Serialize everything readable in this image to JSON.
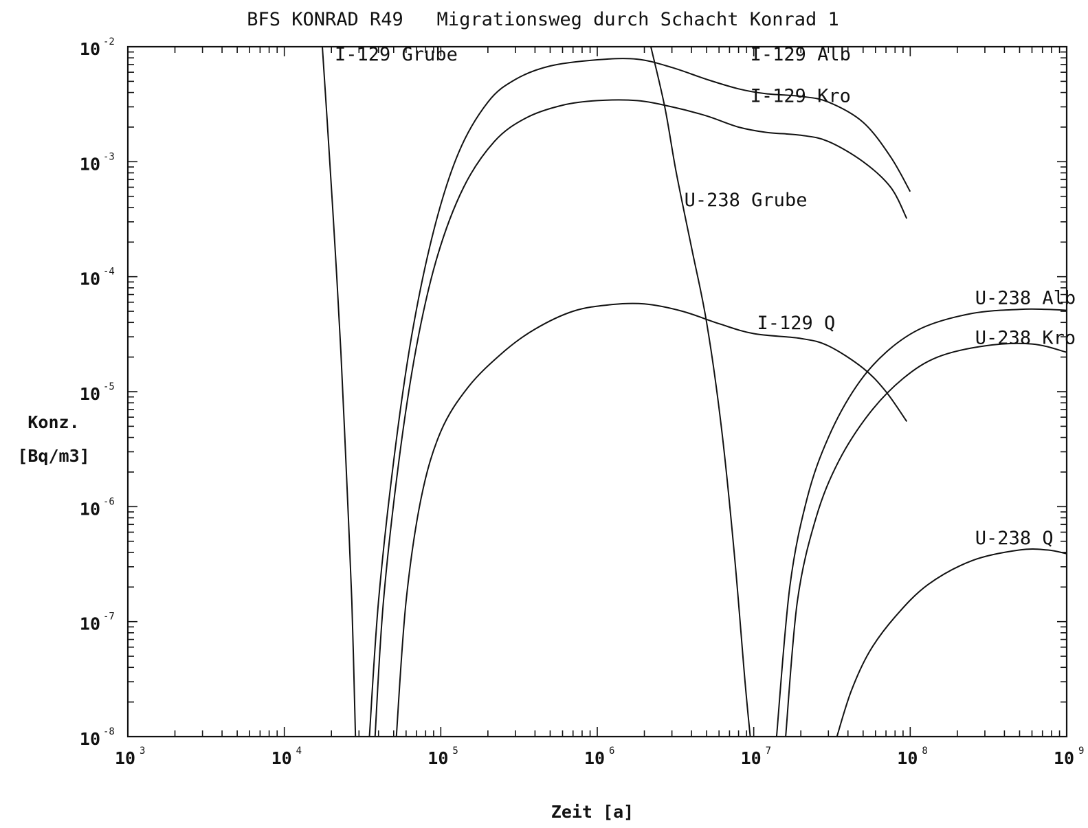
{
  "chart_data": {
    "type": "line",
    "title": "BFS KONRAD R49   Migrationsweg durch Schacht Konrad 1",
    "xlabel": "Zeit [a]",
    "ylabel_line1": "Konz.",
    "ylabel_line2": "[Bq/m3]",
    "x_scale": "log",
    "y_scale": "log",
    "xlim": [
      1000,
      1000000000
    ],
    "ylim": [
      1e-08,
      0.01
    ],
    "grid": false,
    "x_ticks": [
      {
        "base": "10",
        "exp": "3",
        "value": 1000
      },
      {
        "base": "10",
        "exp": "4",
        "value": 10000
      },
      {
        "base": "10",
        "exp": "5",
        "value": 100000
      },
      {
        "base": "10",
        "exp": "6",
        "value": 1000000
      },
      {
        "base": "10",
        "exp": "7",
        "value": 10000000
      },
      {
        "base": "10",
        "exp": "8",
        "value": 100000000
      },
      {
        "base": "10",
        "exp": "9",
        "value": 1000000000
      }
    ],
    "y_ticks": [
      {
        "base": "10",
        "exp": "-2",
        "value": 0.01
      },
      {
        "base": "10",
        "exp": "-3",
        "value": 0.001
      },
      {
        "base": "10",
        "exp": "-4",
        "value": 0.0001
      },
      {
        "base": "10",
        "exp": "-5",
        "value": 1e-05
      },
      {
        "base": "10",
        "exp": "-6",
        "value": 1e-06
      },
      {
        "base": "10",
        "exp": "-7",
        "value": 1e-07
      },
      {
        "base": "10",
        "exp": "-8",
        "value": 1e-08
      }
    ],
    "series": [
      {
        "name": "I-129 Grube",
        "label_at": [
          21000,
          0.0076
        ],
        "points": [
          [
            17500,
            0.01
          ],
          [
            19000,
            0.0018
          ],
          [
            21000,
            0.0002
          ],
          [
            23000,
            2.2e-05
          ],
          [
            25000,
            1.8e-06
          ],
          [
            27000,
            1.5e-07
          ],
          [
            28500,
            1e-08
          ]
        ]
      },
      {
        "name": "I-129 Alb",
        "label_at": [
          9500000,
          0.0076
        ],
        "points": [
          [
            35000,
            1e-08
          ],
          [
            40000,
            1.5e-07
          ],
          [
            50000,
            2.5e-06
          ],
          [
            65000,
            3e-05
          ],
          [
            90000,
            0.00025
          ],
          [
            130000,
            0.0012
          ],
          [
            200000,
            0.0033
          ],
          [
            300000,
            0.0052
          ],
          [
            500000,
            0.0068
          ],
          [
            1000000,
            0.0077
          ],
          [
            1800000,
            0.0078
          ],
          [
            3000000,
            0.0066
          ],
          [
            5000000,
            0.0052
          ],
          [
            8000000,
            0.0043
          ],
          [
            12000000,
            0.0039
          ],
          [
            20000000,
            0.0037
          ],
          [
            30000000,
            0.0033
          ],
          [
            50000000,
            0.0022
          ],
          [
            75000000,
            0.0011
          ],
          [
            100000000,
            0.00055
          ]
        ]
      },
      {
        "name": "I-129 Kro",
        "label_at": [
          9500000,
          0.0033
        ],
        "points": [
          [
            38000,
            1e-08
          ],
          [
            43000,
            1.5e-07
          ],
          [
            54000,
            2.5e-06
          ],
          [
            70000,
            2.5e-05
          ],
          [
            95000,
            0.00015
          ],
          [
            140000,
            0.0006
          ],
          [
            220000,
            0.0015
          ],
          [
            350000,
            0.0024
          ],
          [
            600000,
            0.0031
          ],
          [
            1000000,
            0.0034
          ],
          [
            1800000,
            0.0034
          ],
          [
            3000000,
            0.003
          ],
          [
            5000000,
            0.0025
          ],
          [
            8000000,
            0.002
          ],
          [
            12000000,
            0.0018
          ],
          [
            20000000,
            0.0017
          ],
          [
            30000000,
            0.0015
          ],
          [
            50000000,
            0.001
          ],
          [
            75000000,
            0.0006
          ],
          [
            95000000,
            0.00032
          ]
        ]
      },
      {
        "name": "U-238 Grube",
        "label_at": [
          3600000,
          0.00041
        ],
        "points": [
          [
            2200000,
            0.01
          ],
          [
            2700000,
            0.003
          ],
          [
            3200000,
            0.0008
          ],
          [
            4000000,
            0.00018
          ],
          [
            5000000,
            4e-05
          ],
          [
            6200000,
            5e-06
          ],
          [
            7500000,
            4e-07
          ],
          [
            8800000,
            3e-08
          ],
          [
            9500000,
            1e-08
          ]
        ]
      },
      {
        "name": "I-129 Q",
        "label_at": [
          10500000,
          3.5e-05
        ],
        "points": [
          [
            52000,
            1e-08
          ],
          [
            60000,
            1.5e-07
          ],
          [
            75000,
            1.2e-06
          ],
          [
            100000,
            4.5e-06
          ],
          [
            150000,
            1.1e-05
          ],
          [
            250000,
            2.2e-05
          ],
          [
            400000,
            3.5e-05
          ],
          [
            700000,
            5e-05
          ],
          [
            1200000,
            5.7e-05
          ],
          [
            2000000,
            5.8e-05
          ],
          [
            3500000,
            5e-05
          ],
          [
            6000000,
            3.9e-05
          ],
          [
            10000000,
            3.2e-05
          ],
          [
            20000000,
            2.9e-05
          ],
          [
            30000000,
            2.5e-05
          ],
          [
            50000000,
            1.6e-05
          ],
          [
            70000000,
            1e-05
          ],
          [
            95000000,
            5.5e-06
          ]
        ]
      },
      {
        "name": "U-238 Alb",
        "label_at": [
          260000000,
          5.8e-05
        ],
        "points": [
          [
            14000000,
            1e-08
          ],
          [
            17000000,
            2e-07
          ],
          [
            22000000,
            1.2e-06
          ],
          [
            30000000,
            4e-06
          ],
          [
            45000000,
            1.1e-05
          ],
          [
            70000000,
            2.2e-05
          ],
          [
            120000000,
            3.6e-05
          ],
          [
            250000000,
            4.8e-05
          ],
          [
            500000000,
            5.2e-05
          ],
          [
            750000000,
            5.2e-05
          ],
          [
            1000000000,
            5.1e-05
          ]
        ]
      },
      {
        "name": "U-238 Kro",
        "label_at": [
          260000000,
          2.6e-05
        ],
        "points": [
          [
            16000000,
            1e-08
          ],
          [
            19000000,
            1.5e-07
          ],
          [
            25000000,
            8e-07
          ],
          [
            35000000,
            2.5e-06
          ],
          [
            55000000,
            6.5e-06
          ],
          [
            90000000,
            1.3e-05
          ],
          [
            150000000,
            2e-05
          ],
          [
            300000000,
            2.5e-05
          ],
          [
            600000000,
            2.6e-05
          ],
          [
            1000000000,
            2.2e-05
          ]
        ]
      },
      {
        "name": "U-238 Q",
        "label_at": [
          260000000,
          4.7e-07
        ],
        "points": [
          [
            34000000,
            1e-08
          ],
          [
            42000000,
            2.5e-08
          ],
          [
            55000000,
            5.5e-08
          ],
          [
            80000000,
            1.1e-07
          ],
          [
            130000000,
            2.1e-07
          ],
          [
            250000000,
            3.4e-07
          ],
          [
            500000000,
            4.2e-07
          ],
          [
            750000000,
            4.2e-07
          ],
          [
            1000000000,
            3.9e-07
          ]
        ]
      }
    ]
  }
}
